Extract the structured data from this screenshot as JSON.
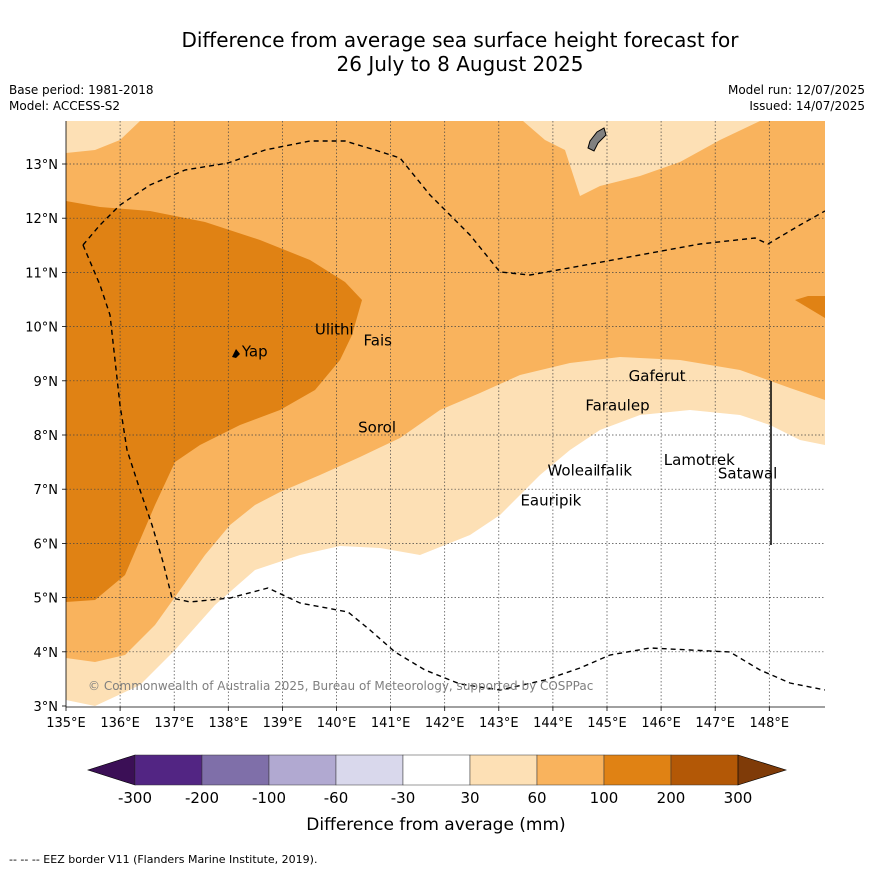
{
  "title_line1": "Difference from average sea surface height forecast for",
  "title_line2": "26 July to 8 August 2025",
  "base_period": "Base period: 1981-2018",
  "model": "Model: ACCESS-S2",
  "model_run": "Model run: 12/07/2025",
  "issued": "Issued: 14/07/2025",
  "copyright": "© Commonwealth of Australia 2025, Bureau of Meteorology, supported by COSPPac",
  "footer": "--  --  -- EEZ border V11 (Flanders Marine Institute, 2019).",
  "colorbar_label": "Difference from average (mm)",
  "colorbar": {
    "ticks": [
      "-300",
      "-200",
      "-100",
      "-60",
      "-30",
      "30",
      "60",
      "100",
      "200",
      "300"
    ],
    "colors": [
      "#3b0f56",
      "#522583",
      "#7f6fa9",
      "#b1a9d1",
      "#d9d8ec",
      "#ffffff",
      "#fde0b5",
      "#f9b35d",
      "#e08214",
      "#b35806",
      "#7f3b08"
    ]
  },
  "chart_data": {
    "type": "contour-map",
    "xlim": [
      135,
      149
    ],
    "ylim": [
      3,
      13.8
    ],
    "x_ticks": [
      "135°E",
      "136°E",
      "137°E",
      "138°E",
      "139°E",
      "140°E",
      "141°E",
      "142°E",
      "143°E",
      "144°E",
      "145°E",
      "146°E",
      "147°E",
      "148°E"
    ],
    "y_ticks": [
      "3°N",
      "4°N",
      "5°N",
      "6°N",
      "7°N",
      "8°N",
      "9°N",
      "10°N",
      "11°N",
      "12°N",
      "13°N"
    ],
    "places": [
      {
        "name": "Yap",
        "lon": 138.25,
        "lat": 9.45
      },
      {
        "name": "Ulithi",
        "lon": 139.6,
        "lat": 9.85
      },
      {
        "name": "Fais",
        "lon": 140.5,
        "lat": 9.65
      },
      {
        "name": "Sorol",
        "lon": 140.4,
        "lat": 8.05
      },
      {
        "name": "Gaferut",
        "lon": 145.4,
        "lat": 9.0
      },
      {
        "name": "Faraulep",
        "lon": 144.6,
        "lat": 8.45
      },
      {
        "name": "Woleai",
        "lon": 143.9,
        "lat": 7.25
      },
      {
        "name": "Ifalik",
        "lon": 144.8,
        "lat": 7.25
      },
      {
        "name": "Lamotrek",
        "lon": 146.05,
        "lat": 7.45
      },
      {
        "name": "Satawal",
        "lon": 147.05,
        "lat": 7.2
      },
      {
        "name": "Eauripik",
        "lon": 143.4,
        "lat": 6.7
      }
    ]
  }
}
